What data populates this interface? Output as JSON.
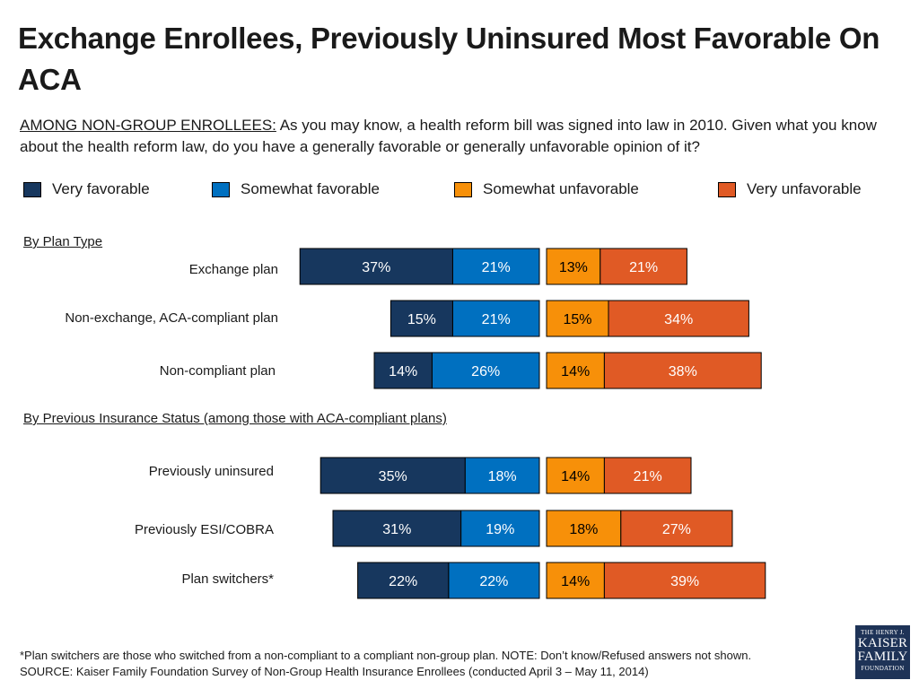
{
  "title": "Exchange Enrollees, Previously Uninsured Most Favorable On ACA",
  "question": {
    "lead": "AMONG NON-GROUP ENROLLEES:",
    "text": " As you may know, a health reform bill was signed into law in 2010. Given what you know about the health reform law, do you have a generally favorable or generally unfavorable opinion of it?"
  },
  "colors": {
    "very_favorable": "#17375e",
    "somewhat_favorable": "#0070c0",
    "somewhat_unfavorable": "#f79009",
    "very_unfavorable": "#e05a25"
  },
  "chart_data": {
    "type": "bar",
    "orientation": "horizontal",
    "stacking": "diverging",
    "series": [
      {
        "name": "Very favorable",
        "side": "favorable"
      },
      {
        "name": "Somewhat favorable",
        "side": "favorable"
      },
      {
        "name": "Somewhat unfavorable",
        "side": "unfavorable"
      },
      {
        "name": "Very unfavorable",
        "side": "unfavorable"
      }
    ],
    "groups": [
      {
        "label": "By Plan Type",
        "rows": [
          {
            "category": "Exchange plan",
            "values": [
              37,
              21,
              13,
              21
            ]
          },
          {
            "category": "Non-exchange, ACA-compliant plan",
            "values": [
              15,
              21,
              15,
              34
            ]
          },
          {
            "category": "Non-compliant plan",
            "values": [
              14,
              26,
              14,
              38
            ]
          }
        ]
      },
      {
        "label": "By Previous Insurance Status (among those with ACA-compliant plans)",
        "rows": [
          {
            "category": "Previously uninsured",
            "values": [
              35,
              18,
              14,
              21
            ]
          },
          {
            "category": "Previously ESI/COBRA",
            "values": [
              31,
              19,
              18,
              27
            ]
          },
          {
            "category": "Plan switchers*",
            "values": [
              22,
              22,
              14,
              39
            ]
          }
        ]
      }
    ]
  },
  "footnote": "*Plan switchers are those who switched from a non-compliant to a compliant non-group plan.  NOTE: Don’t know/Refused answers not shown.",
  "source": " SOURCE: Kaiser Family Foundation Survey of Non-Group Health Insurance Enrollees (conducted April 3 – May 11, 2014)",
  "logo": {
    "line1": "THE HENRY J.",
    "line2a": "KAISER",
    "line2b": "FAMILY",
    "line3": "FOUNDATION"
  }
}
